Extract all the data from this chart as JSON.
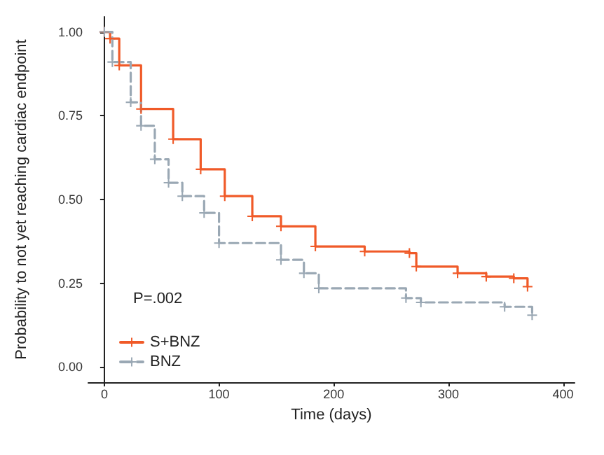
{
  "chart_data": {
    "type": "step",
    "xlabel": "Time (days)",
    "ylabel": "Probability to not yet reaching cardiac endpoint",
    "series": [
      {
        "name": "S+BNZ",
        "color": "#f05a28",
        "line_style": "solid",
        "x": [
          0,
          5,
          13,
          32,
          60,
          84,
          105,
          129,
          154,
          184,
          227,
          266,
          272,
          308,
          333,
          357,
          369
        ],
        "values": [
          1.0,
          0.98,
          0.9,
          0.77,
          0.68,
          0.59,
          0.51,
          0.45,
          0.42,
          0.36,
          0.345,
          0.34,
          0.3,
          0.28,
          0.27,
          0.265,
          0.24
        ]
      },
      {
        "name": "BNZ",
        "color": "#9aa8b4",
        "line_style": "dashed",
        "x": [
          0,
          7,
          23,
          32,
          44,
          56,
          68,
          87,
          100,
          154,
          174,
          187,
          263,
          276,
          349,
          373
        ],
        "values": [
          1.0,
          0.91,
          0.79,
          0.72,
          0.62,
          0.55,
          0.51,
          0.46,
          0.37,
          0.32,
          0.28,
          0.235,
          0.206,
          0.193,
          0.18,
          0.155
        ]
      }
    ],
    "xlim": [
      -14,
      410
    ],
    "xticks": [
      0,
      100,
      200,
      300,
      400
    ],
    "ylim": [
      -0.045,
      1.045
    ],
    "yticks": [
      {
        "value": 0,
        "label": "0.00"
      },
      {
        "value": 0.25,
        "label": "0.25"
      },
      {
        "value": 0.5,
        "label": "0.50"
      },
      {
        "value": 0.75,
        "label": "0.75"
      },
      {
        "value": 1,
        "label": "1.00"
      }
    ],
    "grid": false,
    "legend": "bottom left",
    "marker": "cross",
    "annotations": [
      "P=.002"
    ]
  }
}
